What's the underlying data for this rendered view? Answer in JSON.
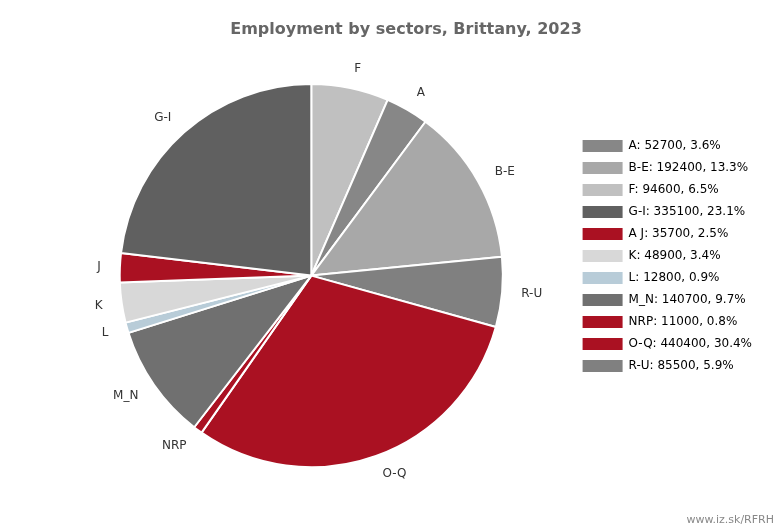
{
  "chart_data": {
    "type": "pie",
    "title": "Employment by sectors, Brittany, 2023",
    "categories": [
      "F",
      "A",
      "B-E",
      "R-U",
      "O-Q",
      "NRP",
      "M_N",
      "L",
      "K",
      "J",
      "G-I"
    ],
    "values": [
      94600,
      52700,
      192400,
      85500,
      440400,
      11000,
      140700,
      12800,
      48900,
      35700,
      335100
    ],
    "colors": [
      "#c0c0c0",
      "#878787",
      "#a8a8a8",
      "#808080",
      "#aa1122",
      "#aa1122",
      "#707070",
      "#b8ccd8",
      "#d8d8d8",
      "#aa1122",
      "#606060"
    ],
    "legend": "right",
    "legend_entries": [
      {
        "label": "A: 52700, 3.6%",
        "color": "#878787"
      },
      {
        "label": "B-E: 192400, 13.3%",
        "color": "#a8a8a8"
      },
      {
        "label": "F: 94600, 6.5%",
        "color": "#c0c0c0"
      },
      {
        "label": "G-I: 335100, 23.1%",
        "color": "#606060"
      },
      {
        "label": "A J: 35700, 2.5%",
        "color": "#aa1122"
      },
      {
        "label": "K: 48900, 3.4%",
        "color": "#d8d8d8"
      },
      {
        "label": "L: 12800, 0.9%",
        "color": "#b8ccd8"
      },
      {
        "label": "M_N: 140700, 9.7%",
        "color": "#707070"
      },
      {
        "label": "NRP: 11000, 0.8%",
        "color": "#aa1122"
      },
      {
        "label": "O-Q: 440400, 30.4%",
        "color": "#aa1122"
      },
      {
        "label": "R-U: 85500, 5.9%",
        "color": "#808080"
      }
    ],
    "annotations": [
      "www.iz.sk/RFRH"
    ]
  }
}
